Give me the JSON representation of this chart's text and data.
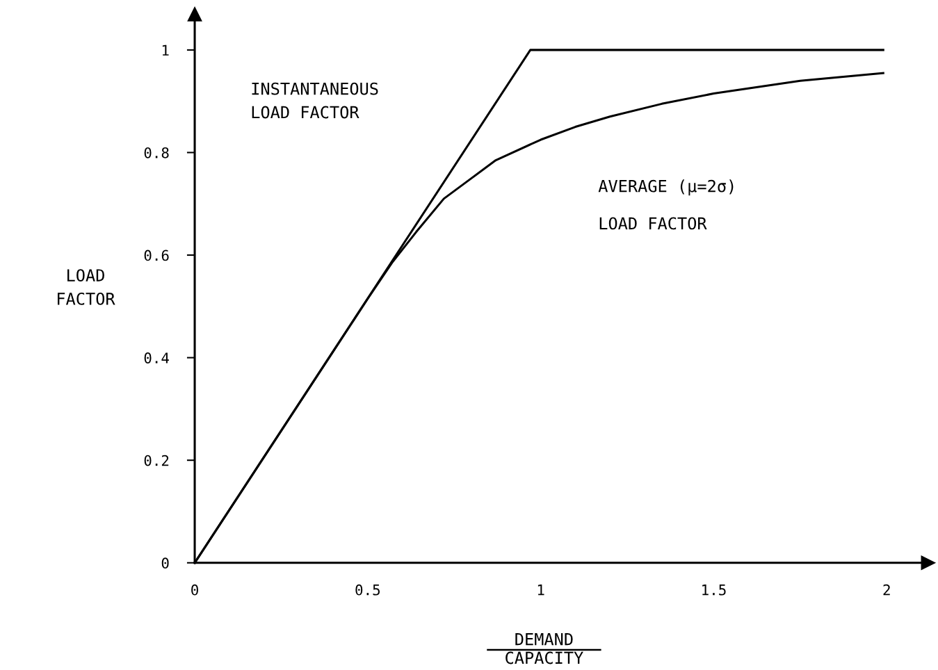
{
  "chart_data": {
    "type": "line",
    "xlabel": "DEMAND\nCAPACITY",
    "ylabel": "LOAD\nFACTOR",
    "series": [
      {
        "color": "#000000",
        "x": [
          0,
          0.97,
          1.99
        ],
        "values": [
          0,
          1,
          1
        ]
      },
      {
        "color": "#000000",
        "x": [
          0,
          0.5,
          0.57,
          0.64,
          0.72,
          0.8,
          0.87,
          1.0,
          1.1,
          1.2,
          1.35,
          1.5,
          1.75,
          1.99
        ],
        "values": [
          0,
          0.515,
          0.585,
          0.645,
          0.71,
          0.75,
          0.785,
          0.825,
          0.85,
          0.87,
          0.895,
          0.915,
          0.94,
          0.955
        ]
      }
    ],
    "xlim": [
      0,
      2.12
    ],
    "ylim": [
      0,
      1.07
    ],
    "xticks": [
      0,
      0.5,
      1,
      1.5,
      2
    ],
    "yticks": [
      0,
      0.2,
      0.4,
      0.6,
      0.8,
      1
    ],
    "grid": false,
    "legend": false,
    "marker": "none",
    "line_style": "solid",
    "annotations": [
      "INSTANTANEOUS\nLOAD FACTOR",
      "AVERAGE (μ=2σ)\nLOAD FACTOR"
    ]
  }
}
